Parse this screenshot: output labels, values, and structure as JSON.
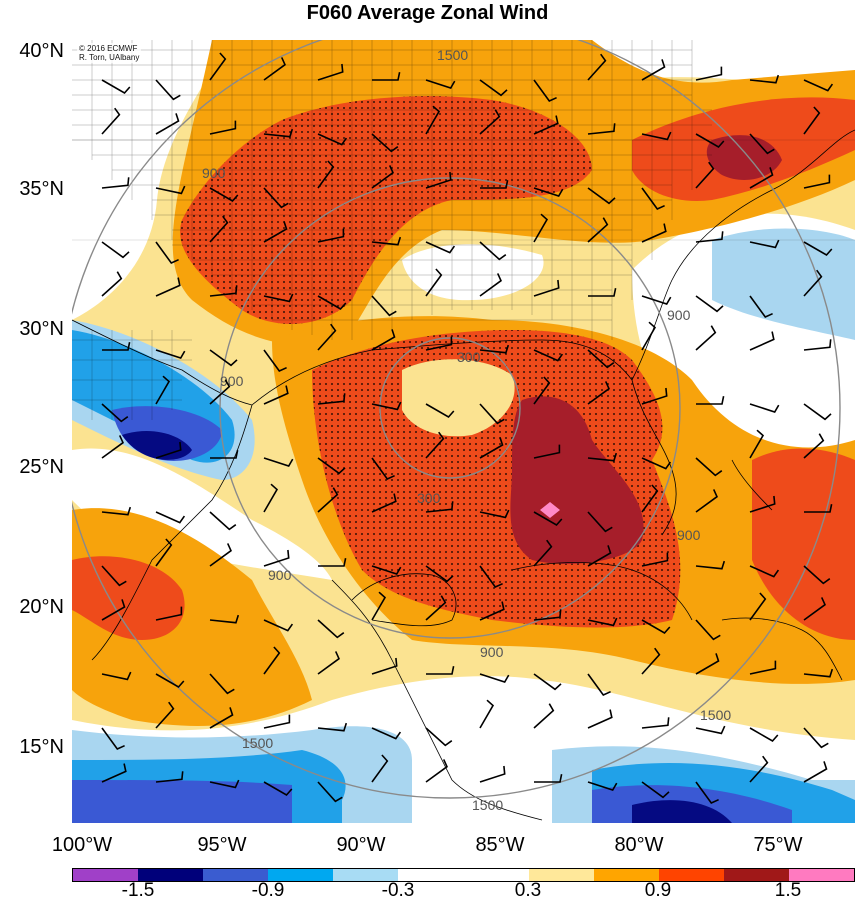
{
  "title": "F060 Average Zonal Wind",
  "credit": {
    "line1": "© 2016 ECMWF",
    "line2": "R. Torn, UAlbany"
  },
  "lat_labels": [
    "40°N",
    "35°N",
    "30°N",
    "25°N",
    "20°N",
    "15°N"
  ],
  "lon_labels": [
    "100°W",
    "95°W",
    "90°W",
    "85°W",
    "80°W",
    "75°W"
  ],
  "contour_labels": [
    "300",
    "900",
    "1500"
  ],
  "colorbar": {
    "colors": [
      "#a040c8",
      "#00007a",
      "#3a5cd0",
      "#00a8f0",
      "#a8dcf4",
      "#ffffff",
      "#ffffff",
      "#ffe89a",
      "#ffa500",
      "#ff4400",
      "#a01818",
      "#ff7ac0"
    ],
    "labels": [
      "-1.5",
      "-0.9",
      "-0.3",
      "0.3",
      "0.9",
      "1.5"
    ]
  },
  "colors": {
    "dark_red": "#a61e2a",
    "red": "#ee4b1b",
    "orange": "#f7a30c",
    "yellow": "#fbe391",
    "light_blue": "#a9d6f0",
    "blue": "#21a1e8",
    "mid_blue": "#3a59d4",
    "dark_blue": "#050a82",
    "pink": "#ff8ac8"
  }
}
